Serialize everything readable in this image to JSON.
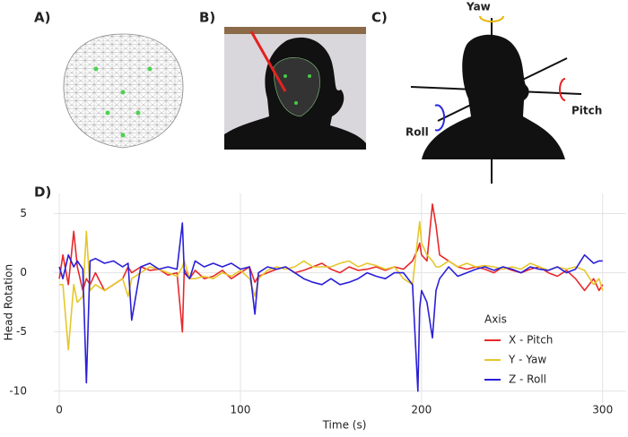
{
  "panel_labels": [
    "A)",
    "B)",
    "C)"
  ],
  "rotation_labels": {
    "yaw": "Yaw",
    "pitch": "Pitch",
    "roll": "Roll"
  },
  "chart_data": {
    "type": "line",
    "panel_label": "D)",
    "x_label": "Time (s)",
    "y_label": "Head Rotation",
    "legend_title": "Axis",
    "legend": "lower right",
    "grid": true,
    "xlim": [
      -3,
      313
    ],
    "xticks": [
      0,
      100,
      200,
      300
    ],
    "ylim": [
      -11,
      6.7
    ],
    "yticks": [
      -10,
      -5,
      0,
      5
    ],
    "x": [
      0,
      2,
      5,
      8,
      10,
      13,
      15,
      17,
      20,
      25,
      30,
      35,
      38,
      40,
      45,
      50,
      55,
      60,
      65,
      68,
      69,
      72,
      75,
      80,
      85,
      90,
      95,
      100,
      105,
      108,
      110,
      115,
      120,
      125,
      130,
      135,
      140,
      145,
      150,
      155,
      160,
      165,
      170,
      175,
      180,
      185,
      190,
      195,
      198,
      199,
      200,
      203,
      206,
      208,
      210,
      215,
      220,
      225,
      230,
      235,
      240,
      245,
      250,
      255,
      260,
      265,
      270,
      275,
      280,
      285,
      290,
      295,
      298,
      300
    ],
    "series": [
      {
        "name": "X - Pitch",
        "color": "#e8282b",
        "values": [
          -0.5,
          1.5,
          -1,
          3.5,
          0.5,
          -1.5,
          -0.5,
          -1,
          0,
          -1.5,
          -1,
          -0.5,
          0.5,
          0,
          0.5,
          0.2,
          0.3,
          -0.2,
          0,
          -5,
          0.3,
          -0.5,
          0.2,
          -0.5,
          -0.3,
          0.2,
          -0.5,
          0,
          0.5,
          -0.8,
          -0.3,
          0,
          0.3,
          0.5,
          0,
          0.2,
          0.5,
          0.8,
          0.3,
          0,
          0.5,
          0.2,
          0.3,
          0.5,
          0.2,
          0.5,
          0.3,
          1,
          2,
          2.5,
          1.5,
          1,
          5.8,
          4,
          1.5,
          1,
          0.5,
          0.3,
          0.5,
          0.3,
          0,
          0.5,
          0.2,
          0,
          0.3,
          0.5,
          0,
          -0.3,
          0.2,
          -0.5,
          -1.5,
          -0.5,
          -1.5,
          -1
        ]
      },
      {
        "name": "Y - Yaw",
        "color": "#e6c72a",
        "values": [
          -1,
          -1,
          -6.5,
          -1,
          -2.5,
          -2,
          3.5,
          -1.5,
          -1,
          -1.5,
          -1,
          -0.5,
          -2,
          -0.5,
          0,
          0.5,
          0.3,
          0,
          -0.3,
          0.5,
          1,
          -0.5,
          -0.5,
          -0.3,
          -0.5,
          0,
          -0.3,
          0.2,
          -0.5,
          -2,
          -0.5,
          0.2,
          0.5,
          0.3,
          0.5,
          1,
          0.5,
          0.5,
          0.5,
          0.8,
          1,
          0.5,
          0.8,
          0.6,
          0.3,
          0.5,
          -0.5,
          -1,
          3,
          4.3,
          2.5,
          1.5,
          1,
          0.5,
          0.5,
          1,
          0.5,
          0.8,
          0.5,
          0.6,
          0.5,
          0.3,
          0.5,
          0.3,
          0.8,
          0.5,
          0.2,
          0.5,
          0.3,
          0.5,
          0.2,
          -1,
          -0.5,
          -1.5
        ]
      },
      {
        "name": "Z - Roll",
        "color": "#2a1fd8",
        "values": [
          0.5,
          -0.5,
          1.5,
          0.5,
          1,
          0.3,
          -9.3,
          1,
          1.2,
          0.8,
          1,
          0.5,
          0.8,
          -4,
          0.5,
          0.8,
          0.3,
          0.5,
          0.3,
          4.2,
          0,
          -0.5,
          1,
          0.5,
          0.8,
          0.5,
          0.8,
          0.3,
          0.5,
          -3.5,
          0,
          0.5,
          0.3,
          0.5,
          0,
          -0.5,
          -0.8,
          -1,
          -0.5,
          -1,
          -0.8,
          -0.5,
          0,
          -0.3,
          -0.5,
          0,
          0,
          -1,
          -10,
          -3,
          -1.5,
          -2.5,
          -5.5,
          -1.5,
          -0.5,
          0.5,
          -0.3,
          0,
          0.3,
          0.5,
          0.2,
          0.5,
          0.3,
          0,
          0.5,
          0.3,
          0.2,
          0.5,
          0,
          0.3,
          1.5,
          0.8,
          1,
          1
        ]
      }
    ]
  }
}
